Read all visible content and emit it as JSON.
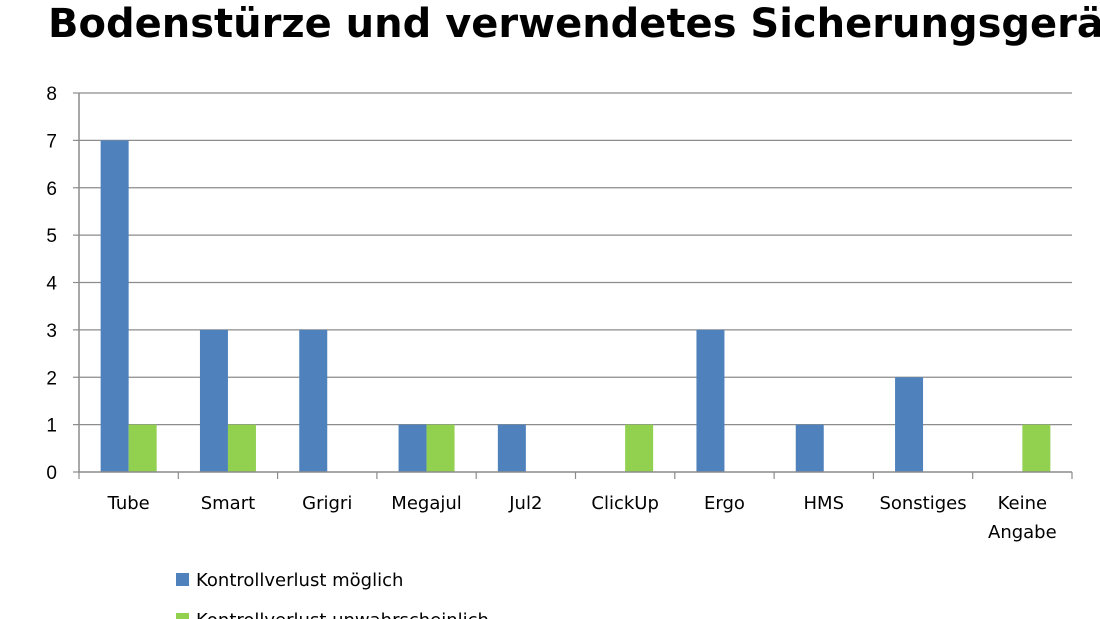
{
  "chart_data": {
    "type": "bar",
    "title": "Bodenstürze und verwendetes Sicherungsgerät",
    "categories": [
      "Tube",
      "Smart",
      "Grigri",
      "Megajul",
      "Jul2",
      "ClickUp",
      "Ergo",
      "HMS",
      "Sonstiges",
      "Keine Angabe"
    ],
    "series": [
      {
        "name": "Kontrollverlust möglich",
        "color": "#4f81bd",
        "values": [
          7,
          3,
          3,
          1,
          1,
          0,
          3,
          1,
          2,
          0
        ]
      },
      {
        "name": "Kontrollverlust unwahrscheinlich",
        "color": "#92d050",
        "values": [
          1,
          1,
          0,
          1,
          0,
          1,
          0,
          0,
          0,
          1
        ]
      }
    ],
    "ylim": [
      0,
      8
    ],
    "yticks": [
      0,
      1,
      2,
      3,
      4,
      5,
      6,
      7,
      8
    ],
    "grid": true,
    "legend": "bottom"
  }
}
